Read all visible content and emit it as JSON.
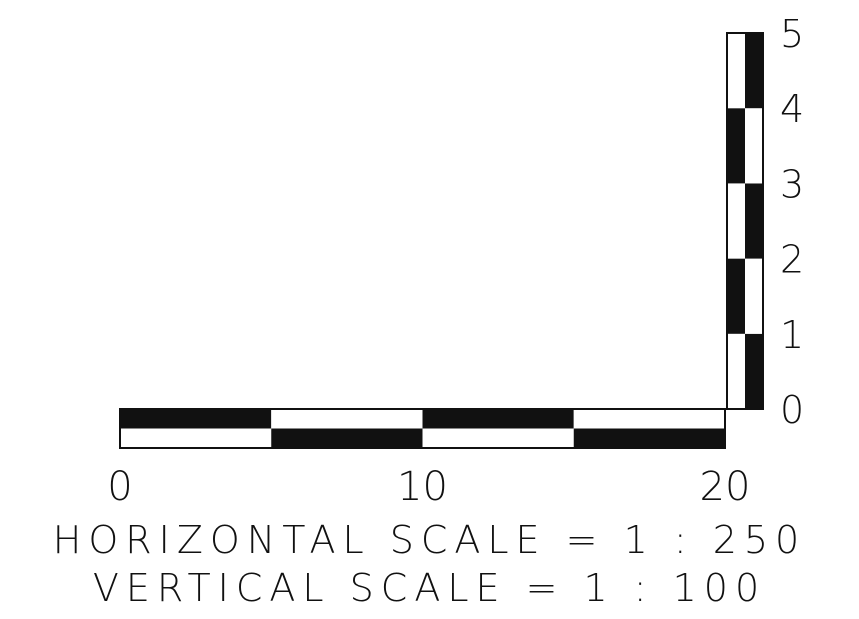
{
  "colors": {
    "ink": "#111111",
    "paper": "#ffffff"
  },
  "horizontal_bar": {
    "tick_labels": [
      "0",
      "10",
      "20"
    ],
    "ticks": [
      0,
      10,
      20
    ],
    "range": [
      0,
      20
    ],
    "segments": 4
  },
  "vertical_bar": {
    "tick_labels": [
      "0",
      "1",
      "2",
      "3",
      "4",
      "5"
    ],
    "ticks": [
      0,
      1,
      2,
      3,
      4,
      5
    ],
    "range": [
      0,
      5
    ]
  },
  "captions": {
    "horizontal": "HORIZONTAL SCALE = 1 : 250",
    "vertical": "VERTICAL SCALE = 1 : 100"
  }
}
